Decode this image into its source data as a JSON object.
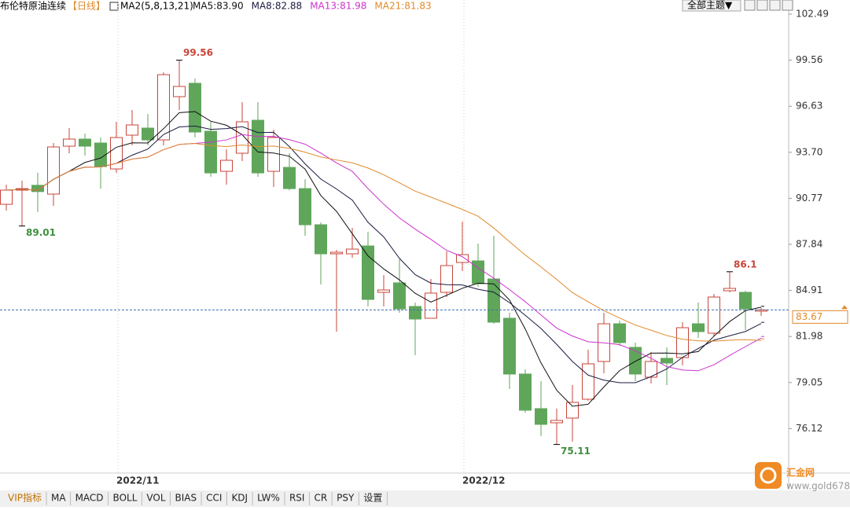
{
  "chart_data": {
    "type": "candlestick",
    "title": "布伦特原油连续",
    "period": "【日线】",
    "ma_title": "MA2(5,8,13,21)",
    "moving_averages": [
      {
        "label": "MA5:83.90",
        "value": 83.9,
        "period": 5,
        "color": "#111111"
      },
      {
        "label": "MA8:82.88",
        "value": 82.88,
        "period": 8,
        "color": "#1a1a40"
      },
      {
        "label": "MA13:81.98",
        "value": 81.98,
        "period": 13,
        "color": "#cc33cc"
      },
      {
        "label": "MA21:81.83",
        "value": 81.83,
        "period": 21,
        "color": "#e08a2b"
      }
    ],
    "categories": [
      null,
      null,
      null,
      null,
      null,
      null,
      null,
      "2022/11",
      null,
      null,
      null,
      null,
      null,
      null,
      null,
      null,
      null,
      null,
      null,
      null,
      null,
      null,
      null,
      null,
      null,
      null,
      null,
      null,
      null,
      "2022/12",
      null,
      null,
      null,
      null,
      null,
      null,
      null,
      null,
      null,
      null,
      null,
      null,
      null,
      null,
      null,
      null,
      null,
      null,
      null
    ],
    "open": [
      90.39,
      91.29,
      91.6,
      91.04,
      94.09,
      94.54,
      94.29,
      92.64,
      94.79,
      95.24,
      94.49,
      97.24,
      98.09,
      95.04,
      92.49,
      93.64,
      95.74,
      92.49,
      92.74,
      91.39,
      89.09,
      87.24,
      87.24,
      87.74,
      84.79,
      85.39,
      83.89,
      83.14,
      84.79,
      86.69,
      86.79,
      85.64,
      83.14,
      79.59,
      77.39,
      76.49,
      76.79,
      77.99,
      80.39,
      82.79,
      81.29,
      79.39,
      80.59,
      80.64,
      82.79,
      82.19,
      84.89,
      84.79,
      83.59
    ],
    "high": [
      91.64,
      91.89,
      92.4,
      94.29,
      95.24,
      94.89,
      94.64,
      95.64,
      96.39,
      96.14,
      98.79,
      99.56,
      98.39,
      95.64,
      93.89,
      96.89,
      96.89,
      95.14,
      93.64,
      91.99,
      89.24,
      87.49,
      88.89,
      88.64,
      85.89,
      86.89,
      84.14,
      85.64,
      87.39,
      89.29,
      87.89,
      88.39,
      83.49,
      79.89,
      79.14,
      77.39,
      78.89,
      81.14,
      83.49,
      82.99,
      81.59,
      80.99,
      81.29,
      82.89,
      84.14,
      84.69,
      86.1,
      84.89,
      83.79
    ],
    "low": [
      89.99,
      89.01,
      89.9,
      90.29,
      93.64,
      93.49,
      91.39,
      92.39,
      94.14,
      94.14,
      94.14,
      96.39,
      94.64,
      92.14,
      91.64,
      93.14,
      92.14,
      91.49,
      91.29,
      88.39,
      85.29,
      82.29,
      86.99,
      83.89,
      83.89,
      83.49,
      80.79,
      83.14,
      84.49,
      86.14,
      85.14,
      82.79,
      78.64,
      77.14,
      75.64,
      75.11,
      75.29,
      77.89,
      79.64,
      81.39,
      79.14,
      78.99,
      78.89,
      80.14,
      81.89,
      81.99,
      84.79,
      82.39,
      83.29
    ],
    "close": [
      91.29,
      91.39,
      91.2,
      94.04,
      94.54,
      94.09,
      92.79,
      94.64,
      95.44,
      94.49,
      98.64,
      97.89,
      94.99,
      92.39,
      93.19,
      95.64,
      92.39,
      94.64,
      91.39,
      89.09,
      87.24,
      87.34,
      87.54,
      84.34,
      84.94,
      83.74,
      83.09,
      84.74,
      86.49,
      87.19,
      85.34,
      82.89,
      79.59,
      77.29,
      76.39,
      76.64,
      77.79,
      80.24,
      82.79,
      81.59,
      79.59,
      80.39,
      80.29,
      82.54,
      82.29,
      84.49,
      85.04,
      83.74,
      83.67
    ],
    "up_color": "#c8453a",
    "down_color": "#5fa65a",
    "last_price": 83.67,
    "ylim": [
      73.39,
      103.39
    ],
    "yticks": [
      102.49,
      99.56,
      96.63,
      {
        "value": 93.7,
        "label": "93.70"
      },
      90.77,
      87.84,
      84.91,
      81.98,
      79.05,
      76.12
    ]
  },
  "toolbar": {
    "theme_button": "全部主题▼",
    "tabs": [
      "VIP指标",
      "MA",
      "MACD",
      "BOLL",
      "VOL",
      "BIAS",
      "CCI",
      "KDJ",
      "LW%",
      "RSI",
      "CR",
      "PSY",
      "设置"
    ]
  },
  "logo": {
    "name": "汇金网",
    "url": "www.gold678.com"
  }
}
